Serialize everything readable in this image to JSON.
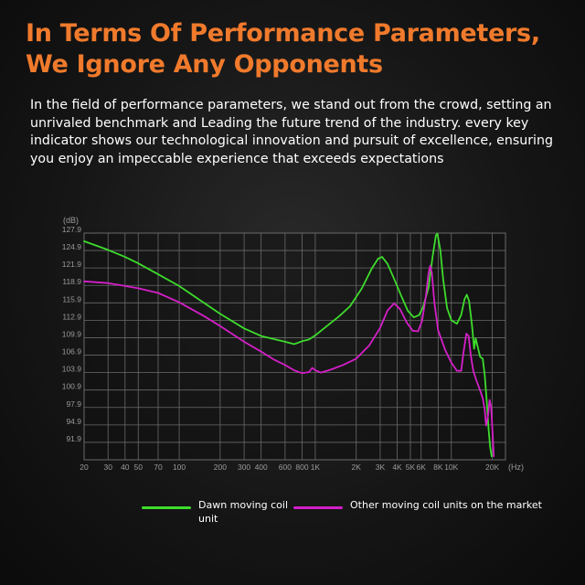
{
  "heading": {
    "line1": "In Terms Of Performance Parameters,",
    "line2": "We Ignore Any Opponents"
  },
  "description": "In the field of performance parameters, we stand out from the crowd, setting an unrivaled benchmark and Leading the future trend of the industry. every key indicator shows our technological innovation and pursuit of excellence, ensuring you enjoy an impeccable experience that exceeds expectations",
  "colors": {
    "title": "#f07a2c",
    "series_green": "#3ddc2c",
    "series_magenta": "#d41fc8",
    "grid": "#6a6a6a",
    "tick": "#9a9a9a"
  },
  "chart_data": {
    "type": "line",
    "title": "",
    "xlabel": "(Hz)",
    "ylabel": "(dB)",
    "x_scale": "log",
    "xlim": [
      20,
      25000
    ],
    "ylim": [
      88.9,
      127.9
    ],
    "grid": true,
    "legend_position": "bottom",
    "x_ticks": [
      {
        "v": 20,
        "label": "20"
      },
      {
        "v": 30,
        "label": "30"
      },
      {
        "v": 40,
        "label": "40"
      },
      {
        "v": 50,
        "label": "50"
      },
      {
        "v": 70,
        "label": "70"
      },
      {
        "v": 100,
        "label": "100"
      },
      {
        "v": 200,
        "label": "200"
      },
      {
        "v": 300,
        "label": "300"
      },
      {
        "v": 400,
        "label": "400"
      },
      {
        "v": 600,
        "label": "600"
      },
      {
        "v": 800,
        "label": "800"
      },
      {
        "v": 1000,
        "label": "1K"
      },
      {
        "v": 2000,
        "label": "2K"
      },
      {
        "v": 3000,
        "label": "3K"
      },
      {
        "v": 4000,
        "label": "4K"
      },
      {
        "v": 5000,
        "label": "5K"
      },
      {
        "v": 6000,
        "label": "6K"
      },
      {
        "v": 8000,
        "label": "8K"
      },
      {
        "v": 10000,
        "label": "10K"
      },
      {
        "v": 20000,
        "label": "20K"
      }
    ],
    "y_ticks": [
      {
        "v": 127.9,
        "label": "127.9"
      },
      {
        "v": 124.9,
        "label": "124.9"
      },
      {
        "v": 121.9,
        "label": "121.9"
      },
      {
        "v": 118.9,
        "label": "118.9"
      },
      {
        "v": 115.9,
        "label": "115.9"
      },
      {
        "v": 112.9,
        "label": "112.9"
      },
      {
        "v": 109.9,
        "label": "109.9"
      },
      {
        "v": 106.9,
        "label": "106.9"
      },
      {
        "v": 103.9,
        "label": "103.9"
      },
      {
        "v": 100.9,
        "label": "100.9"
      },
      {
        "v": 97.9,
        "label": "97.9"
      },
      {
        "v": 94.9,
        "label": "94.9"
      },
      {
        "v": 91.9,
        "label": "91.9"
      }
    ],
    "series": [
      {
        "name": "Dawn moving coil unit",
        "color": "#3ddc2c",
        "points": [
          [
            20,
            126.5
          ],
          [
            30,
            125
          ],
          [
            40,
            123.8
          ],
          [
            50,
            122.7
          ],
          [
            70,
            120.8
          ],
          [
            100,
            118.8
          ],
          [
            150,
            116
          ],
          [
            200,
            114
          ],
          [
            300,
            111.5
          ],
          [
            400,
            110.2
          ],
          [
            600,
            109.2
          ],
          [
            700,
            108.8
          ],
          [
            800,
            109.3
          ],
          [
            900,
            109.6
          ],
          [
            1000,
            110.3
          ],
          [
            1200,
            111.8
          ],
          [
            1500,
            113.6
          ],
          [
            1800,
            115.3
          ],
          [
            2200,
            118.4
          ],
          [
            2600,
            121.8
          ],
          [
            2900,
            123.5
          ],
          [
            3100,
            123.8
          ],
          [
            3400,
            122.6
          ],
          [
            3800,
            120
          ],
          [
            4300,
            117
          ],
          [
            4800,
            114.5
          ],
          [
            5300,
            113.4
          ],
          [
            5800,
            113.8
          ],
          [
            6200,
            115.2
          ],
          [
            6800,
            118.5
          ],
          [
            7300,
            124
          ],
          [
            7700,
            127.5
          ],
          [
            7900,
            127.8
          ],
          [
            8300,
            125
          ],
          [
            8700,
            120
          ],
          [
            9300,
            115
          ],
          [
            10000,
            112.9
          ],
          [
            11000,
            112.3
          ],
          [
            11800,
            113.8
          ],
          [
            12500,
            116.5
          ],
          [
            13000,
            117.3
          ],
          [
            13500,
            116.2
          ],
          [
            14200,
            112
          ],
          [
            14700,
            108
          ],
          [
            15100,
            109.8
          ],
          [
            15600,
            108.4
          ],
          [
            16300,
            106.6
          ],
          [
            17000,
            106.3
          ],
          [
            17600,
            103.5
          ],
          [
            18200,
            99
          ],
          [
            18800,
            94
          ],
          [
            19300,
            91
          ],
          [
            19800,
            89.5
          ]
        ]
      },
      {
        "name": "Other moving coil units on the market",
        "color": "#d41fc8",
        "points": [
          [
            20,
            119.6
          ],
          [
            30,
            119.3
          ],
          [
            40,
            118.8
          ],
          [
            50,
            118.4
          ],
          [
            70,
            117.6
          ],
          [
            100,
            116
          ],
          [
            150,
            113.7
          ],
          [
            200,
            111.9
          ],
          [
            300,
            109.2
          ],
          [
            400,
            107.5
          ],
          [
            500,
            106.1
          ],
          [
            600,
            105.2
          ],
          [
            700,
            104.3
          ],
          [
            800,
            103.8
          ],
          [
            900,
            104
          ],
          [
            950,
            104.7
          ],
          [
            1000,
            104.3
          ],
          [
            1100,
            103.9
          ],
          [
            1300,
            104.4
          ],
          [
            1600,
            105.2
          ],
          [
            2000,
            106.3
          ],
          [
            2500,
            108.6
          ],
          [
            3000,
            111.6
          ],
          [
            3400,
            114.6
          ],
          [
            3800,
            115.8
          ],
          [
            4200,
            114.8
          ],
          [
            4700,
            112.5
          ],
          [
            5200,
            111.1
          ],
          [
            5700,
            111
          ],
          [
            6100,
            112.8
          ],
          [
            6500,
            117
          ],
          [
            6800,
            121
          ],
          [
            7000,
            122.3
          ],
          [
            7200,
            121
          ],
          [
            7500,
            116
          ],
          [
            8000,
            111.2
          ],
          [
            9000,
            107.8
          ],
          [
            10000,
            105.6
          ],
          [
            11000,
            104.2
          ],
          [
            11800,
            104.2
          ],
          [
            12300,
            107.4
          ],
          [
            12900,
            110.6
          ],
          [
            13400,
            110.2
          ],
          [
            13900,
            106.8
          ],
          [
            14500,
            104.2
          ],
          [
            15100,
            102.9
          ],
          [
            16300,
            100.8
          ],
          [
            17000,
            99.5
          ],
          [
            17600,
            97.5
          ],
          [
            18000,
            94.8
          ],
          [
            18600,
            96.5
          ],
          [
            19100,
            99.2
          ],
          [
            19600,
            98
          ],
          [
            20100,
            93.5
          ],
          [
            20500,
            89.5
          ]
        ]
      }
    ]
  },
  "legend": {
    "green_label": "Dawn moving coil unit",
    "magenta_label": "Other moving coil units on the market"
  }
}
